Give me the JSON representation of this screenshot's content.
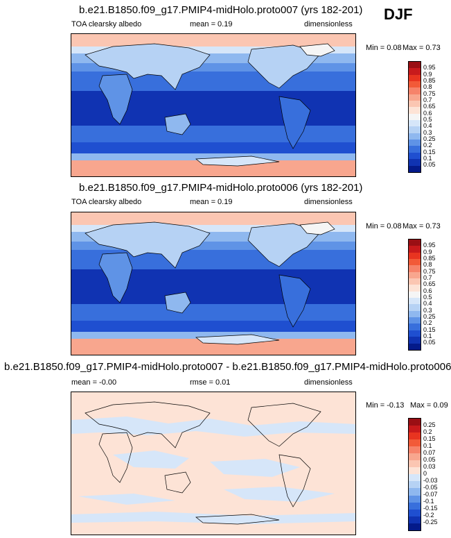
{
  "season": "DJF",
  "panels": [
    {
      "title": "b.e21.B1850.f09_g17.PMIP4-midHolo.proto007 (yrs 182-201)",
      "left_label": "TOA clearsky albedo",
      "mean_text": "mean =  0.19",
      "units": "dimensionless",
      "min_text": "Min =  0.08",
      "max_text": "Max =  0.73"
    },
    {
      "title": "b.e21.B1850.f09_g17.PMIP4-midHolo.proto006 (yrs 182-201)",
      "left_label": "TOA clearsky albedo",
      "mean_text": "mean =  0.19",
      "units": "dimensionless",
      "min_text": "Min =  0.08",
      "max_text": "Max =  0.73"
    },
    {
      "title": "b.e21.B1850.f09_g17.PMIP4-midHolo.proto007 - b.e21.B1850.f09_g17.PMIP4-midHolo.proto006",
      "left_label": "mean =  -0.00",
      "mean_text": "rmse =  0.01",
      "units": "dimensionless",
      "min_text": "Min =  -0.13",
      "max_text": "Max =  0.09"
    }
  ],
  "colorbar_abs": {
    "labels": [
      "0.95",
      "0.9",
      "0.85",
      "0.8",
      "0.75",
      "0.7",
      "0.65",
      "0.6",
      "0.5",
      "0.4",
      "0.3",
      "0.25",
      "0.2",
      "0.15",
      "0.1",
      "0.05"
    ],
    "colors": [
      "#9a0f14",
      "#c81a1c",
      "#e83420",
      "#f25a38",
      "#f6836a",
      "#f8a68e",
      "#fbc6b2",
      "#fde3d6",
      "#f5f5f5",
      "#d6e6f9",
      "#b6d2f4",
      "#8fb8ef",
      "#5f93e6",
      "#386fdc",
      "#1f4fd0",
      "#1033b2",
      "#041a8a"
    ]
  },
  "colorbar_diff": {
    "labels": [
      "0.25",
      "0.2",
      "0.15",
      "0.1",
      "0.07",
      "0.05",
      "0.03",
      "0",
      "-0.03",
      "-0.05",
      "-0.07",
      "-0.1",
      "-0.15",
      "-0.2",
      "-0.25"
    ],
    "colors": [
      "#9a0f14",
      "#c81a1c",
      "#e83420",
      "#f25a38",
      "#f6836a",
      "#f8a68e",
      "#fbc6b2",
      "#fde3d6",
      "#d6e6f9",
      "#b6d2f4",
      "#8fb8ef",
      "#5f93e6",
      "#386fdc",
      "#1f4fd0",
      "#1033b2",
      "#041a8a"
    ]
  }
}
